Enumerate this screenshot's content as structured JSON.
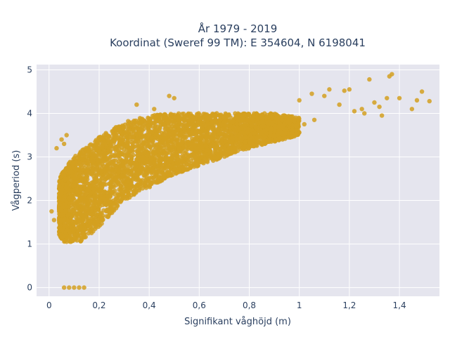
{
  "chart_data": {
    "type": "scatter",
    "title_line1": "År 1979 - 2019",
    "title_line2": "Koordinat (Sweref 99 TM): E 354604, N 6198041",
    "xlabel": "Signifikant våghöjd (m)",
    "ylabel": "Vågperiod (s)",
    "xlim": [
      -0.05,
      1.56
    ],
    "ylim": [
      -0.2,
      5.12
    ],
    "x_ticks": [
      0,
      0.2,
      0.4,
      0.6,
      0.8,
      1,
      1.2,
      1.4
    ],
    "x_tick_labels": [
      "0",
      "0,2",
      "0,4",
      "0,6",
      "0,8",
      "1",
      "1,2",
      "1,4"
    ],
    "y_ticks": [
      0,
      1,
      2,
      3,
      4,
      5
    ],
    "y_tick_labels": [
      "0",
      "1",
      "2",
      "3",
      "4",
      "5"
    ],
    "grid": true,
    "series": [
      {
        "color": "#d4a020",
        "bulk_envelope_upper": [
          [
            0.04,
            2.5
          ],
          [
            0.08,
            2.9
          ],
          [
            0.12,
            3.1
          ],
          [
            0.2,
            3.45
          ],
          [
            0.3,
            3.8
          ],
          [
            0.4,
            3.95
          ],
          [
            0.5,
            4.0
          ],
          [
            0.7,
            4.0
          ],
          [
            0.9,
            4.0
          ],
          [
            1.0,
            3.9
          ]
        ],
        "bulk_envelope_lower": [
          [
            0.04,
            1.2
          ],
          [
            0.06,
            1.05
          ],
          [
            0.13,
            1.05
          ],
          [
            0.2,
            1.4
          ],
          [
            0.3,
            2.0
          ],
          [
            0.4,
            2.3
          ],
          [
            0.5,
            2.6
          ],
          [
            0.6,
            2.8
          ],
          [
            0.8,
            3.2
          ],
          [
            1.0,
            3.5
          ]
        ],
        "outliers": [
          [
            0.05,
            3.4
          ],
          [
            0.07,
            3.5
          ],
          [
            0.06,
            3.3
          ],
          [
            0.03,
            3.2
          ],
          [
            0.06,
            0.0
          ],
          [
            0.08,
            0.0
          ],
          [
            0.1,
            0.0
          ],
          [
            0.12,
            0.0
          ],
          [
            0.14,
            0.0
          ],
          [
            0.01,
            1.75
          ],
          [
            0.02,
            1.55
          ],
          [
            1.05,
            4.45
          ],
          [
            1.1,
            4.4
          ],
          [
            1.12,
            4.55
          ],
          [
            1.18,
            4.52
          ],
          [
            1.2,
            4.55
          ],
          [
            1.16,
            4.2
          ],
          [
            1.25,
            4.1
          ],
          [
            1.3,
            4.25
          ],
          [
            1.35,
            4.35
          ],
          [
            1.36,
            4.85
          ],
          [
            1.37,
            4.9
          ],
          [
            1.28,
            4.78
          ],
          [
            1.4,
            4.35
          ],
          [
            1.45,
            4.1
          ],
          [
            1.49,
            4.5
          ],
          [
            1.52,
            4.28
          ],
          [
            1.47,
            4.3
          ],
          [
            1.32,
            4.15
          ],
          [
            1.22,
            4.05
          ],
          [
            0.48,
            4.4
          ],
          [
            0.5,
            4.35
          ],
          [
            0.35,
            4.2
          ],
          [
            0.42,
            4.1
          ],
          [
            0.2,
            3.45
          ],
          [
            0.18,
            3.2
          ],
          [
            1.33,
            3.95
          ],
          [
            1.26,
            4.0
          ],
          [
            1.02,
            3.75
          ],
          [
            1.06,
            3.85
          ],
          [
            1.0,
            4.3
          ]
        ]
      }
    ]
  }
}
